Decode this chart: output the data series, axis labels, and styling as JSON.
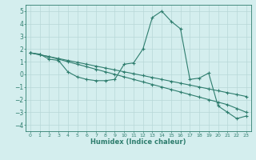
{
  "xlabel": "Humidex (Indice chaleur)",
  "x": [
    0,
    1,
    2,
    3,
    4,
    5,
    6,
    7,
    8,
    9,
    10,
    11,
    12,
    13,
    14,
    15,
    16,
    17,
    18,
    19,
    20,
    21,
    22,
    23
  ],
  "line1": [
    1.7,
    1.6,
    1.2,
    1.1,
    0.2,
    -0.2,
    -0.4,
    -0.5,
    -0.5,
    -0.4,
    0.8,
    0.9,
    2.0,
    4.5,
    5.0,
    4.2,
    3.6,
    -0.4,
    -0.3,
    0.1,
    -2.5,
    -3.0,
    -3.5,
    -3.3
  ],
  "line2": [
    1.7,
    1.55,
    1.4,
    1.25,
    1.1,
    0.95,
    0.8,
    0.65,
    0.5,
    0.35,
    0.2,
    0.05,
    -0.1,
    -0.25,
    -0.4,
    -0.55,
    -0.7,
    -0.85,
    -1.0,
    -1.15,
    -1.3,
    -1.45,
    -1.6,
    -1.75
  ],
  "line3": [
    1.7,
    1.55,
    1.4,
    1.2,
    1.0,
    0.8,
    0.6,
    0.4,
    0.2,
    0.0,
    -0.2,
    -0.4,
    -0.6,
    -0.8,
    -1.0,
    -1.2,
    -1.4,
    -1.6,
    -1.8,
    -2.0,
    -2.2,
    -2.4,
    -2.7,
    -3.0
  ],
  "line_color": "#2e7d6e",
  "bg_color": "#d4eeee",
  "grid_color": "#b8d8d8",
  "ylim": [
    -4.5,
    5.5
  ],
  "xlim": [
    -0.5,
    23.5
  ],
  "yticks": [
    -4,
    -3,
    -2,
    -1,
    0,
    1,
    2,
    3,
    4,
    5
  ],
  "xticks": [
    0,
    1,
    2,
    3,
    4,
    5,
    6,
    7,
    8,
    9,
    10,
    11,
    12,
    13,
    14,
    15,
    16,
    17,
    18,
    19,
    20,
    21,
    22,
    23
  ]
}
